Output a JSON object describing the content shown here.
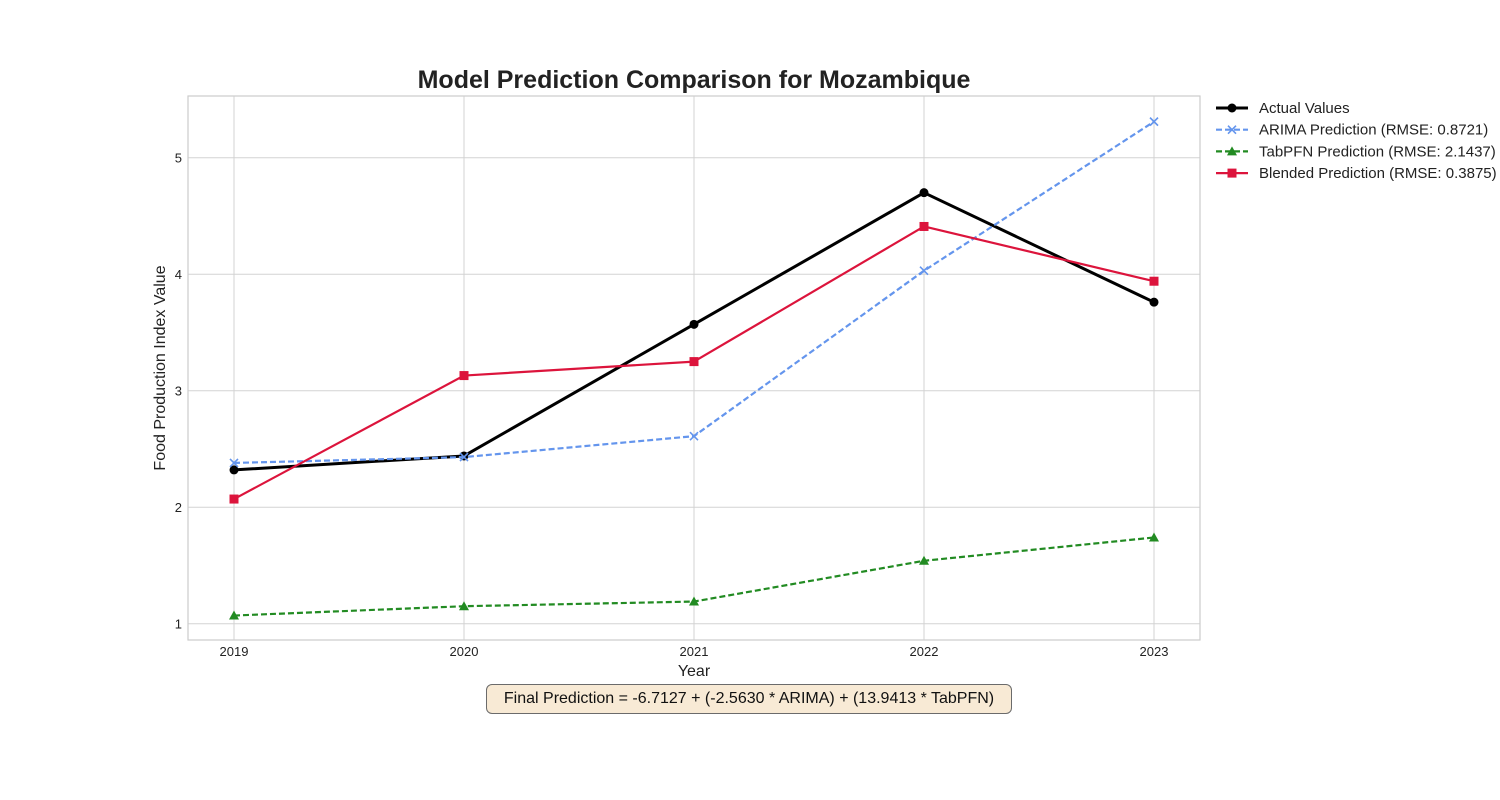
{
  "chart_data": {
    "type": "line",
    "title": "Model Prediction Comparison for Mozambique",
    "xlabel": "Year",
    "ylabel": "Food Production Index Value",
    "x": [
      "2019",
      "2020",
      "2021",
      "2022",
      "2023"
    ],
    "xlim": [
      2018.8,
      2023.2
    ],
    "ylim": [
      0.86,
      5.53
    ],
    "yticks": [
      1,
      2,
      3,
      4,
      5
    ],
    "grid": true,
    "legend_position": "outside-top-right",
    "series": [
      {
        "name": "Actual Values",
        "values": [
          2.32,
          2.44,
          3.57,
          4.7,
          3.76
        ],
        "color": "#000000",
        "style": "solid",
        "marker": "circle"
      },
      {
        "name": "ARIMA Prediction (RMSE: 0.8721)",
        "values": [
          2.38,
          2.43,
          2.61,
          4.03,
          5.31
        ],
        "color": "#6495ed",
        "style": "dashed",
        "marker": "x"
      },
      {
        "name": "TabPFN Prediction (RMSE: 2.1437)",
        "values": [
          1.07,
          1.15,
          1.19,
          1.54,
          1.74
        ],
        "color": "#228b22",
        "style": "dashed",
        "marker": "triangle"
      },
      {
        "name": "Blended Prediction (RMSE: 0.3875)",
        "values": [
          2.07,
          3.13,
          3.25,
          4.41,
          3.94
        ],
        "color": "#dc143c",
        "style": "solid",
        "marker": "square"
      }
    ],
    "annotation": "Final Prediction = -6.7127 + (-2.5630 * ARIMA) + (13.9413 * TabPFN)"
  }
}
